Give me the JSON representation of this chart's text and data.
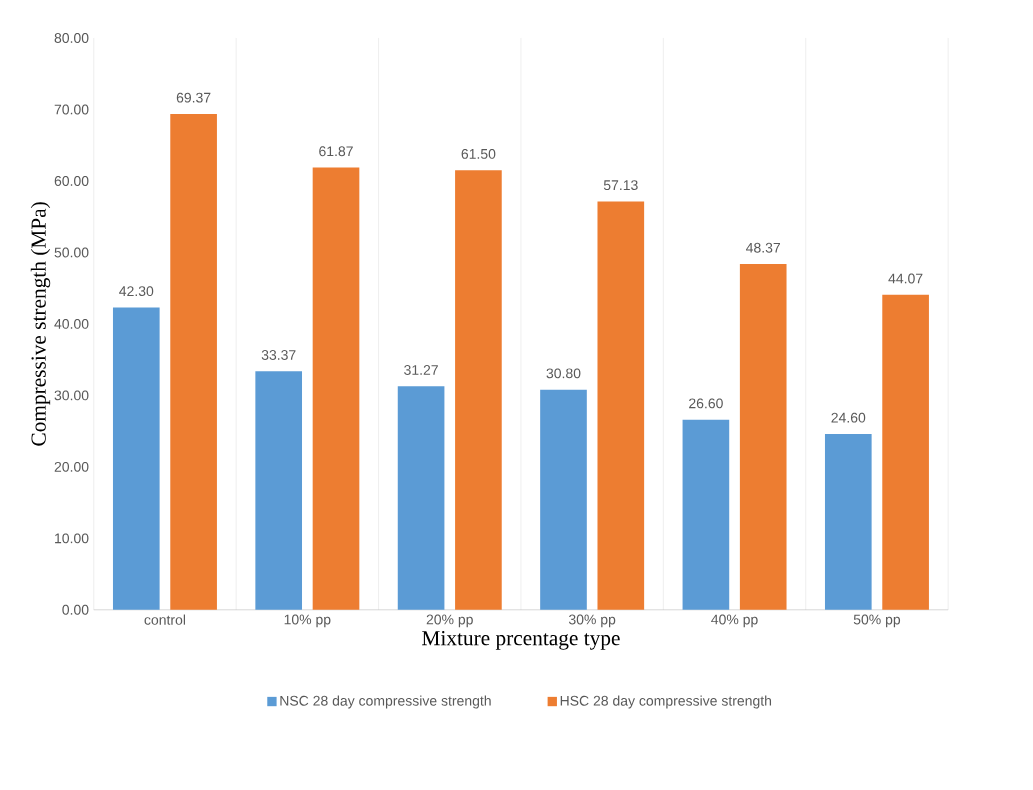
{
  "chart_data": {
    "type": "bar",
    "xlabel": "Mixture prcentage type",
    "ylabel": "Compressive strength (MPa)",
    "categories": [
      "control",
      "10% pp",
      "20% pp",
      "30% pp",
      "40% pp",
      "50% pp"
    ],
    "series": [
      {
        "name": "NSC 28 day compressive strength",
        "color": "#5b9bd5",
        "values": [
          42.3,
          33.37,
          31.27,
          30.8,
          26.6,
          24.6
        ],
        "value_labels": [
          "42.30",
          "33.37",
          "31.27",
          "30.80",
          "26.60",
          "24.60"
        ]
      },
      {
        "name": "HSC 28 day compressive strength",
        "color": "#ed7d31",
        "values": [
          69.37,
          61.87,
          61.5,
          57.13,
          48.37,
          44.07
        ],
        "value_labels": [
          "69.37",
          "61.87",
          "61.50",
          "57.13",
          "48.37",
          "44.07"
        ]
      }
    ],
    "ylim": [
      0,
      80
    ],
    "yticks": [
      {
        "value": 0,
        "label": "0.00"
      },
      {
        "value": 10,
        "label": "10.00"
      },
      {
        "value": 20,
        "label": "20.00"
      },
      {
        "value": 30,
        "label": "30.00"
      },
      {
        "value": 40,
        "label": "40.00"
      },
      {
        "value": 50,
        "label": "50.00"
      },
      {
        "value": 60,
        "label": "60.00"
      },
      {
        "value": 70,
        "label": "70.00"
      },
      {
        "value": 80,
        "label": "80.00"
      }
    ],
    "grid": "x",
    "legend": "bottom"
  }
}
